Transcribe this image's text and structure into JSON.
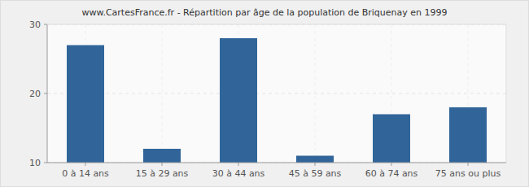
{
  "chart_data": {
    "type": "bar",
    "title": "www.CartesFrance.fr - Répartition par âge de la population de Briquenay en 1999",
    "categories": [
      "0 à 14 ans",
      "15 à 29 ans",
      "30 à 44 ans",
      "45 à 59 ans",
      "60 à 74 ans",
      "75 ans ou plus"
    ],
    "values": [
      27,
      12,
      28,
      11,
      17,
      18
    ],
    "color": "#31659a",
    "ylim": [
      10,
      30
    ],
    "yticks": [
      10,
      20,
      30
    ],
    "grid": true
  }
}
